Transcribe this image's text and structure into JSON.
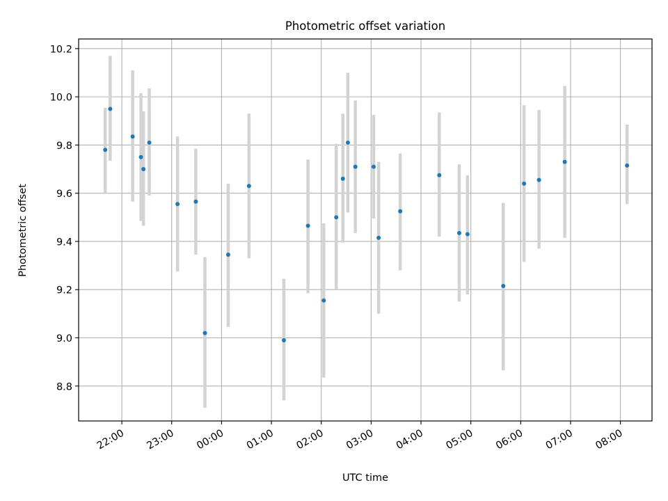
{
  "chart_data": {
    "type": "scatter",
    "title": "Photometric offset variation",
    "xlabel": "UTC time",
    "ylabel": "Photometric offset",
    "x_tick_labels": [
      "22:00",
      "23:00",
      "00:00",
      "01:00",
      "02:00",
      "03:00",
      "04:00",
      "05:00",
      "06:00",
      "07:00",
      "08:00"
    ],
    "x_tick_hours": [
      22,
      23,
      24,
      25,
      26,
      27,
      28,
      29,
      30,
      31,
      32
    ],
    "y_ticks": [
      8.8,
      9.0,
      9.2,
      9.4,
      9.6,
      9.8,
      10.0,
      10.2
    ],
    "y_tick_labels": [
      "8.8",
      "9.0",
      "9.2",
      "9.4",
      "9.6",
      "9.8",
      "10.0",
      "10.2"
    ],
    "xlim": [
      "21:08",
      "08:38"
    ],
    "ylim": [
      8.655,
      10.24
    ],
    "grid": true,
    "marker_color": "#1f77b4",
    "errorbar_color": "#d3d3d3",
    "points": [
      {
        "t": "21:40",
        "y": 9.78,
        "lo": 9.6,
        "hi": 9.955
      },
      {
        "t": "21:46",
        "y": 9.95,
        "lo": 9.735,
        "hi": 10.17
      },
      {
        "t": "22:13",
        "y": 9.835,
        "lo": 9.565,
        "hi": 10.11
      },
      {
        "t": "22:23",
        "y": 9.75,
        "lo": 9.485,
        "hi": 10.015
      },
      {
        "t": "22:26",
        "y": 9.7,
        "lo": 9.465,
        "hi": 9.94
      },
      {
        "t": "22:33",
        "y": 9.81,
        "lo": 9.59,
        "hi": 10.035
      },
      {
        "t": "23:07",
        "y": 9.555,
        "lo": 9.275,
        "hi": 9.835
      },
      {
        "t": "23:29",
        "y": 9.565,
        "lo": 9.345,
        "hi": 9.785
      },
      {
        "t": "23:40",
        "y": 9.02,
        "lo": 8.71,
        "hi": 9.335
      },
      {
        "t": "00:08",
        "y": 9.345,
        "lo": 9.045,
        "hi": 9.64
      },
      {
        "t": "00:33",
        "y": 9.63,
        "lo": 9.33,
        "hi": 9.93
      },
      {
        "t": "01:15",
        "y": 8.99,
        "lo": 8.74,
        "hi": 9.245
      },
      {
        "t": "01:44",
        "y": 9.465,
        "lo": 9.185,
        "hi": 9.74
      },
      {
        "t": "02:03",
        "y": 9.155,
        "lo": 8.835,
        "hi": 9.475
      },
      {
        "t": "02:18",
        "y": 9.5,
        "lo": 9.2,
        "hi": 9.805
      },
      {
        "t": "02:26",
        "y": 9.66,
        "lo": 9.395,
        "hi": 9.93
      },
      {
        "t": "02:32",
        "y": 9.81,
        "lo": 9.52,
        "hi": 10.1
      },
      {
        "t": "02:41",
        "y": 9.71,
        "lo": 9.435,
        "hi": 9.985
      },
      {
        "t": "03:03",
        "y": 9.71,
        "lo": 9.495,
        "hi": 9.925
      },
      {
        "t": "03:09",
        "y": 9.415,
        "lo": 9.1,
        "hi": 9.73
      },
      {
        "t": "03:35",
        "y": 9.525,
        "lo": 9.28,
        "hi": 9.765
      },
      {
        "t": "04:22",
        "y": 9.675,
        "lo": 9.42,
        "hi": 9.935
      },
      {
        "t": "04:46",
        "y": 9.435,
        "lo": 9.15,
        "hi": 9.72
      },
      {
        "t": "04:56",
        "y": 9.43,
        "lo": 9.18,
        "hi": 9.675
      },
      {
        "t": "05:39",
        "y": 9.215,
        "lo": 8.865,
        "hi": 9.56
      },
      {
        "t": "06:04",
        "y": 9.64,
        "lo": 9.315,
        "hi": 9.965
      },
      {
        "t": "06:22",
        "y": 9.655,
        "lo": 9.37,
        "hi": 9.945
      },
      {
        "t": "06:53",
        "y": 9.73,
        "lo": 9.415,
        "hi": 10.045
      },
      {
        "t": "08:08",
        "y": 9.715,
        "lo": 9.555,
        "hi": 9.885
      }
    ]
  }
}
